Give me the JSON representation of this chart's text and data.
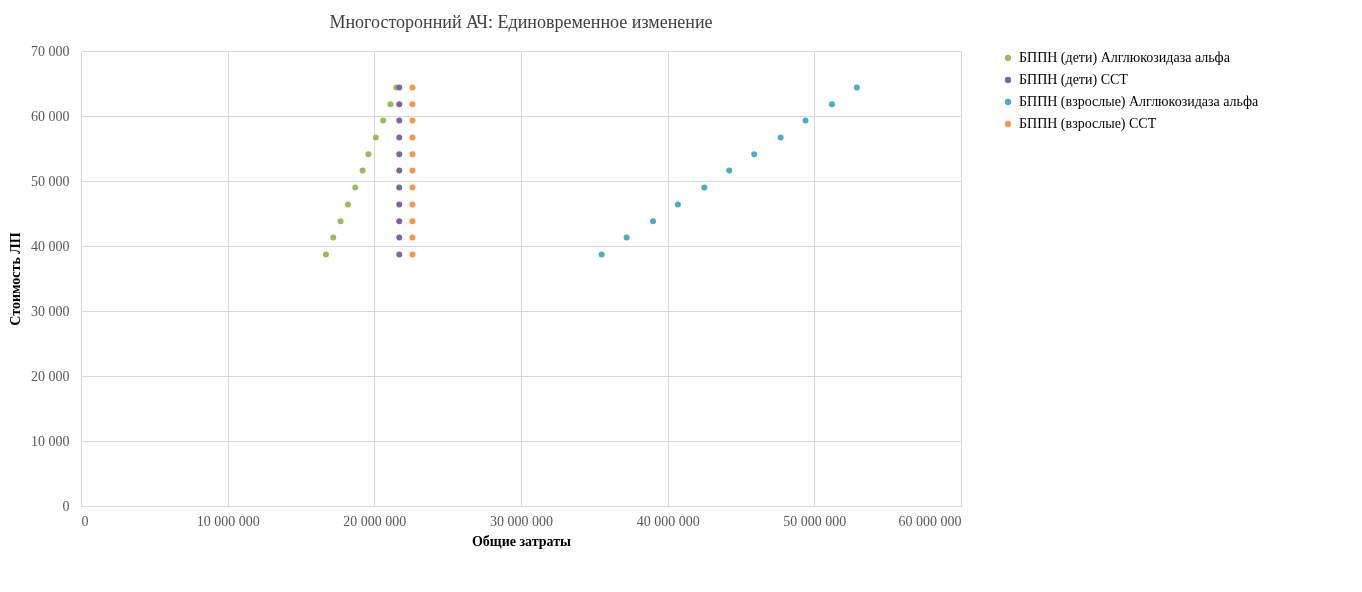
{
  "chart_data": {
    "type": "scatter",
    "title": "Многосторонний АЧ: Единовременное изменение",
    "xlabel": "Общие затраты",
    "ylabel": "Стоимость ЛП",
    "xlim": [
      0,
      60000000
    ],
    "xticks": [
      0,
      {
        "value": 10000000,
        "label": "10 000 000"
      },
      {
        "value": 20000000,
        "label": "20 000 000"
      },
      {
        "value": 30000000,
        "label": "30 000 000"
      },
      {
        "value": 40000000,
        "label": "40 000 000"
      },
      {
        "value": 50000000,
        "label": "50 000 000"
      },
      {
        "value": 60000000,
        "label": "60 000 000"
      }
    ],
    "ylim": [
      0,
      70000
    ],
    "yticks": [
      0,
      {
        "value": 10000,
        "label": "10 000"
      },
      {
        "value": 20000,
        "label": "20 000"
      },
      {
        "value": 30000,
        "label": "30 000"
      },
      {
        "value": 40000,
        "label": "40 000"
      },
      {
        "value": 50000,
        "label": "50 000"
      },
      {
        "value": 60000,
        "label": "60 000"
      },
      {
        "value": 70000,
        "label": "70 000"
      }
    ],
    "grid": true,
    "legend": "right",
    "marker": "circle",
    "series": [
      {
        "name": "БППН (дети) Алглюкозидаза альфа",
        "color": "#9bbb59",
        "x": [
          16700000,
          17200000,
          17700000,
          18200000,
          18700000,
          19200000,
          19600000,
          20100000,
          20600000,
          21100000,
          21500000
        ],
        "values": [
          38700,
          41300,
          43800,
          46400,
          49000,
          51600,
          54100,
          56700,
          59300,
          61800,
          64400
        ]
      },
      {
        "name": "БППН (дети) ССТ",
        "color": "#8064a2",
        "x": [
          21700000,
          21700000,
          21700000,
          21700000,
          21700000,
          21700000,
          21700000,
          21700000,
          21700000,
          21700000,
          21700000
        ],
        "values": [
          38700,
          41300,
          43800,
          46400,
          49000,
          51600,
          54100,
          56700,
          59300,
          61800,
          64400
        ]
      },
      {
        "name": "БППН (взрослые) Алглюкозидаза альфа",
        "color": "#4bacc6",
        "x": [
          35500000,
          37200000,
          39000000,
          40700000,
          42500000,
          44200000,
          45900000,
          47700000,
          49400000,
          51200000,
          52900000
        ],
        "values": [
          38700,
          41300,
          43800,
          46400,
          49000,
          51600,
          54100,
          56700,
          59300,
          61800,
          64400
        ]
      },
      {
        "name": "БППН (взрослые) ССТ",
        "color": "#f79646",
        "x": [
          22600000,
          22600000,
          22600000,
          22600000,
          22600000,
          22600000,
          22600000,
          22600000,
          22600000,
          22600000,
          22600000
        ],
        "values": [
          38700,
          41300,
          43800,
          46400,
          49000,
          51600,
          54100,
          56700,
          59300,
          61800,
          64400
        ]
      }
    ]
  }
}
